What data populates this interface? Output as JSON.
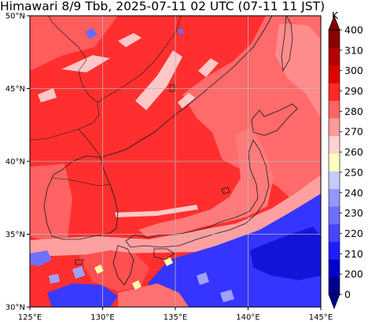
{
  "title": "Himawari 8/9 Tbb, 2025-07-11 02 UTC (07-11 11 JST)",
  "map": {
    "lon_range": [
      125,
      145
    ],
    "lat_range": [
      30,
      50
    ],
    "x_ticks": [
      "125°E",
      "130°E",
      "135°E",
      "140°E",
      "145°E"
    ],
    "y_ticks": [
      "30°N",
      "35°N",
      "40°N",
      "45°N",
      "50°N"
    ],
    "grid": true
  },
  "colorbar": {
    "unit": "K",
    "extend": "both",
    "tick_labels": [
      "0",
      "200",
      "210",
      "220",
      "230",
      "240",
      "250",
      "260",
      "270",
      "280",
      "290",
      "300",
      "310",
      "400"
    ],
    "level_colors": [
      "#00008b",
      "#0000cd",
      "#1e1eff",
      "#4646ff",
      "#6e6eff",
      "#9696ff",
      "#c8c8ff",
      "#ffffc0",
      "#ffd2d2",
      "#ff9a9a",
      "#ff6464",
      "#ff2828",
      "#e00000",
      "#b40000",
      "#8b0000"
    ],
    "under_color": "#00008b",
    "over_color": "#800000"
  },
  "palette": {
    "base_red": "#ff2f2f",
    "pink": "#ff7373",
    "light_pink": "#ff9f9f",
    "white_cloud": "#ffe4e4",
    "cold_cloud": "#3c3cff"
  }
}
